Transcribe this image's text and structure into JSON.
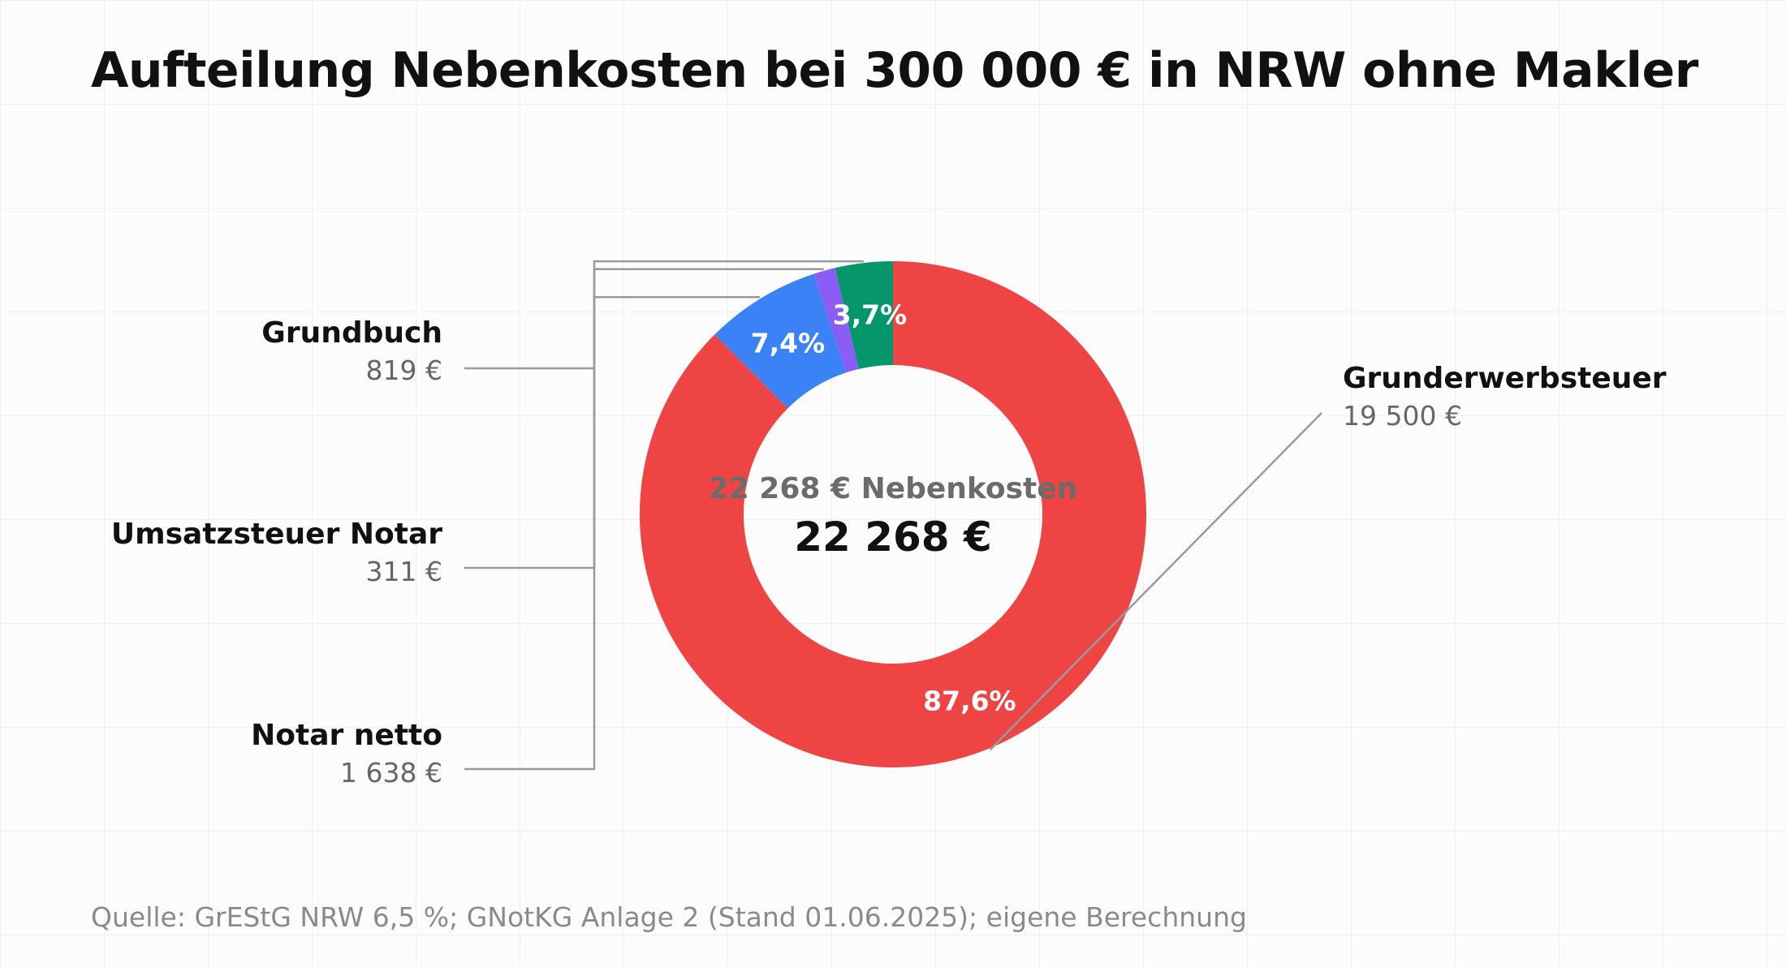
{
  "chart_data": {
    "type": "donut",
    "title": "Aufteilung Nebenkosten bei 300 000 € in NRW ohne Makler",
    "center_subtitle": "22 268 € Nebenkosten",
    "center_total": "22 268 €",
    "total": 22268,
    "slices": [
      {
        "name": "Grunderwerbsteuer",
        "value": 19500,
        "value_label": "19 500 €",
        "pct_label": "87,6%",
        "color": "#ef4444"
      },
      {
        "name": "Notar netto",
        "value": 1638,
        "value_label": "1 638 €",
        "pct_label": "7,4%",
        "color": "#3b82f6"
      },
      {
        "name": "Umsatzsteuer Notar",
        "value": 311,
        "value_label": "311 €",
        "pct_label": "",
        "color": "#8b5cf6"
      },
      {
        "name": "Grundbuch",
        "value": 819,
        "value_label": "819 €",
        "pct_label": "3,7%",
        "color": "#059669"
      }
    ],
    "source": "Quelle: GrEStG NRW 6,5 %; GNotKG Anlage 2 (Stand 01.06.2025); eigene Berechnung"
  }
}
